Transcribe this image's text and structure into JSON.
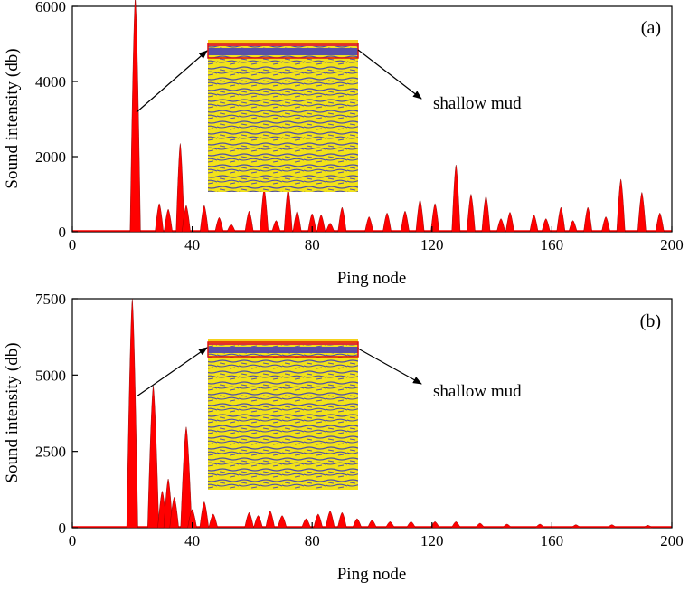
{
  "chart_data": [
    {
      "type": "area",
      "panel_label": "(a)",
      "xlabel": "Ping node",
      "ylabel": "Sound intensity (db)",
      "xlim": [
        0,
        200
      ],
      "ylim": [
        0,
        6000
      ],
      "x_ticks": [
        0,
        40,
        80,
        120,
        160,
        200
      ],
      "y_ticks": [
        0,
        2000,
        4000,
        6000
      ],
      "x_tick_labels": [
        "0",
        "40",
        "80",
        "120",
        "160",
        "200"
      ],
      "y_tick_labels": [
        "0",
        "2000",
        "4000",
        "6000"
      ],
      "annotation": "shallow mud",
      "series_color": "#ff0000",
      "peaks": [
        {
          "x": 21,
          "y": 6250
        },
        {
          "x": 29,
          "y": 750
        },
        {
          "x": 32,
          "y": 600
        },
        {
          "x": 36,
          "y": 2350
        },
        {
          "x": 38,
          "y": 700
        },
        {
          "x": 44,
          "y": 700
        },
        {
          "x": 49,
          "y": 380
        },
        {
          "x": 53,
          "y": 200
        },
        {
          "x": 59,
          "y": 550
        },
        {
          "x": 64,
          "y": 1150
        },
        {
          "x": 68,
          "y": 300
        },
        {
          "x": 72,
          "y": 1150
        },
        {
          "x": 75,
          "y": 550
        },
        {
          "x": 80,
          "y": 480
        },
        {
          "x": 83,
          "y": 450
        },
        {
          "x": 86,
          "y": 230
        },
        {
          "x": 90,
          "y": 650
        },
        {
          "x": 99,
          "y": 400
        },
        {
          "x": 105,
          "y": 500
        },
        {
          "x": 111,
          "y": 550
        },
        {
          "x": 116,
          "y": 850
        },
        {
          "x": 121,
          "y": 750
        },
        {
          "x": 128,
          "y": 1780
        },
        {
          "x": 133,
          "y": 1000
        },
        {
          "x": 138,
          "y": 950
        },
        {
          "x": 143,
          "y": 350
        },
        {
          "x": 146,
          "y": 520
        },
        {
          "x": 154,
          "y": 450
        },
        {
          "x": 158,
          "y": 350
        },
        {
          "x": 163,
          "y": 650
        },
        {
          "x": 167,
          "y": 300
        },
        {
          "x": 172,
          "y": 650
        },
        {
          "x": 178,
          "y": 400
        },
        {
          "x": 183,
          "y": 1400
        },
        {
          "x": 190,
          "y": 1050
        },
        {
          "x": 196,
          "y": 500
        }
      ]
    },
    {
      "type": "area",
      "panel_label": "(b)",
      "xlabel": "Ping node",
      "ylabel": "Sound intensity (db)",
      "xlim": [
        0,
        200
      ],
      "ylim": [
        0,
        7500
      ],
      "x_ticks": [
        0,
        40,
        80,
        120,
        160,
        200
      ],
      "y_ticks": [
        0,
        2500,
        5000,
        7500
      ],
      "x_tick_labels": [
        "0",
        "40",
        "80",
        "120",
        "160",
        "200"
      ],
      "y_tick_labels": [
        "0",
        "2500",
        "5000",
        "7500"
      ],
      "annotation": "shallow mud",
      "series_color": "#ff0000",
      "peaks": [
        {
          "x": 20,
          "y": 7500
        },
        {
          "x": 27,
          "y": 4650
        },
        {
          "x": 30,
          "y": 1200
        },
        {
          "x": 32,
          "y": 1600
        },
        {
          "x": 34,
          "y": 1000
        },
        {
          "x": 38,
          "y": 3300
        },
        {
          "x": 40,
          "y": 600
        },
        {
          "x": 44,
          "y": 850
        },
        {
          "x": 47,
          "y": 450
        },
        {
          "x": 59,
          "y": 500
        },
        {
          "x": 62,
          "y": 400
        },
        {
          "x": 66,
          "y": 550
        },
        {
          "x": 70,
          "y": 400
        },
        {
          "x": 78,
          "y": 300
        },
        {
          "x": 82,
          "y": 450
        },
        {
          "x": 86,
          "y": 550
        },
        {
          "x": 90,
          "y": 500
        },
        {
          "x": 95,
          "y": 300
        },
        {
          "x": 100,
          "y": 250
        },
        {
          "x": 106,
          "y": 200
        },
        {
          "x": 113,
          "y": 200
        },
        {
          "x": 121,
          "y": 200
        },
        {
          "x": 128,
          "y": 200
        },
        {
          "x": 136,
          "y": 150
        },
        {
          "x": 145,
          "y": 120
        },
        {
          "x": 156,
          "y": 120
        },
        {
          "x": 168,
          "y": 100
        },
        {
          "x": 180,
          "y": 100
        },
        {
          "x": 192,
          "y": 80
        }
      ]
    }
  ]
}
